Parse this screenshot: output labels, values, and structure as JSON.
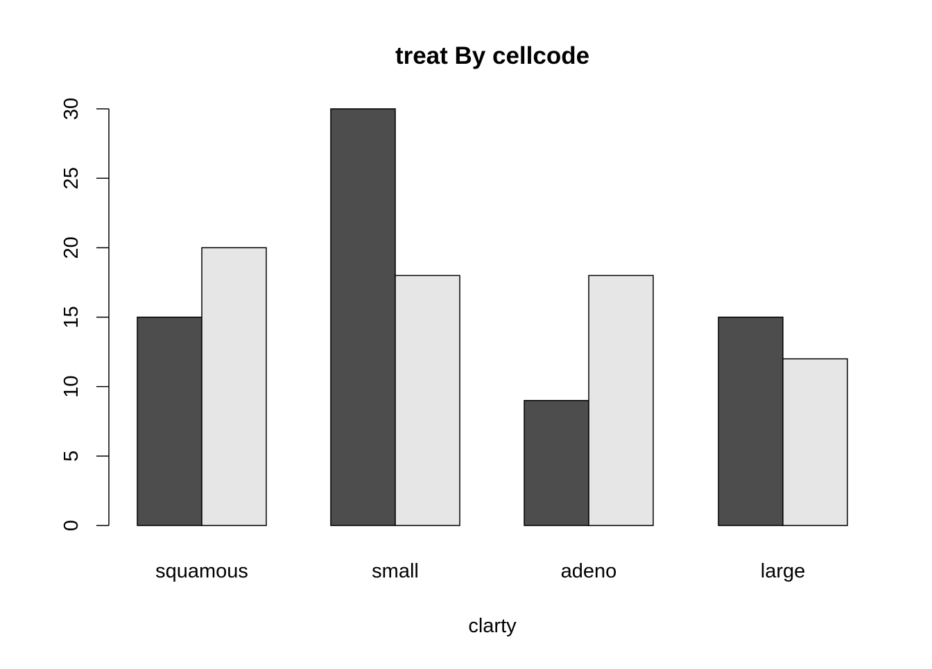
{
  "chart_data": {
    "type": "bar",
    "title": "treat By cellcode",
    "xlabel": "clarty",
    "ylabel": "",
    "categories": [
      "squamous",
      "small",
      "adeno",
      "large"
    ],
    "series": [
      {
        "values": [
          15,
          30,
          9,
          15
        ]
      },
      {
        "values": [
          20,
          18,
          18,
          12
        ]
      }
    ],
    "series_colors": [
      "#4d4d4d",
      "#e6e6e6"
    ],
    "bar_outline_color": "#000000",
    "ylim": [
      0,
      30
    ],
    "yticks": [
      0,
      5,
      10,
      15,
      20,
      25,
      30
    ],
    "grid": false,
    "legend": "none"
  }
}
